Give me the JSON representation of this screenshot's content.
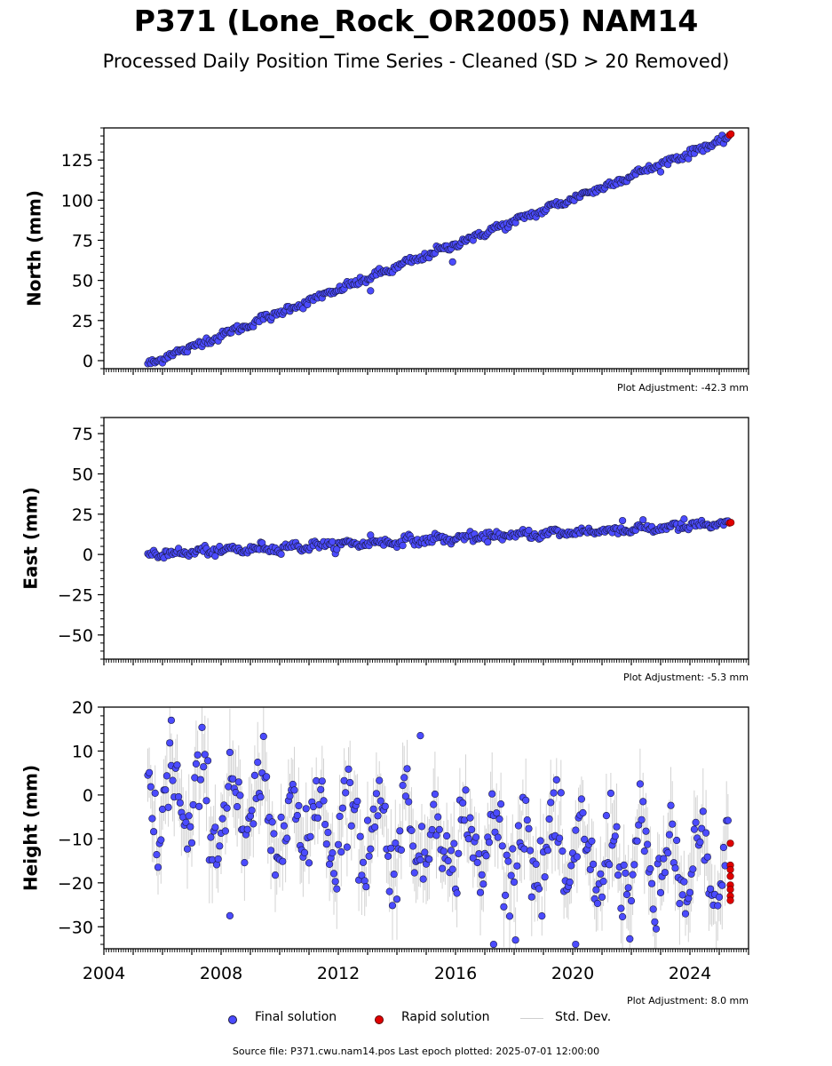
{
  "title": "P371 (Lone_Rock_OR2005) NAM14",
  "subtitle": "Processed Daily Position Time Series - Cleaned (SD > 20 Removed)",
  "legend": {
    "final": "Final solution",
    "rapid": "Rapid solution",
    "std": "Std. Dev."
  },
  "source_text": "Source file: P371.cwu.nam14.pos  Last epoch plotted: 2025-07-01 12:00:00",
  "colors": {
    "final": "#4b4bff",
    "rapid": "#e00000",
    "std": "#808080",
    "edge": "#1a1a40"
  },
  "chart_data": [
    {
      "type": "scatter",
      "ylabel": "North (mm)",
      "adjustment": "Plot Adjustment: -42.3 mm",
      "xlim": [
        2004,
        2026
      ],
      "ylim": [
        -5,
        145
      ],
      "yticks": [
        0,
        25,
        50,
        75,
        100,
        125
      ],
      "ytick_labels": [
        "0",
        "25",
        "50",
        "75",
        "100",
        "125"
      ],
      "x_start": 2005.5,
      "x_end": 2025.3,
      "trend": {
        "y0": -2,
        "rate_per_year": 7.1
      },
      "seasonal_amp": 0.8,
      "noise": 1.2,
      "outliers": [
        {
          "x": 2013.1,
          "y": 43.5
        },
        {
          "x": 2015.9,
          "y": 61.5
        }
      ],
      "rapid": [
        {
          "x": 2025.35,
          "y": 140.5
        },
        {
          "x": 2025.4,
          "y": 141.2
        }
      ],
      "show_std": false
    },
    {
      "type": "scatter",
      "ylabel": "East (mm)",
      "adjustment": "Plot Adjustment: -5.3 mm",
      "xlim": [
        2004,
        2026
      ],
      "ylim": [
        -65,
        85
      ],
      "yticks": [
        -50,
        -25,
        0,
        25,
        50,
        75
      ],
      "ytick_labels": [
        "−50",
        "−25",
        "0",
        "25",
        "50",
        "75"
      ],
      "x_start": 2005.5,
      "x_end": 2025.3,
      "trend": {
        "y0": 0,
        "rate_per_year": 0.95
      },
      "seasonal_amp": 1.2,
      "noise": 1.3,
      "outliers": [
        {
          "x": 2013.1,
          "y": 12
        },
        {
          "x": 2021.7,
          "y": 21
        },
        {
          "x": 2023.8,
          "y": 22
        }
      ],
      "rapid": [
        {
          "x": 2025.35,
          "y": 19.5
        },
        {
          "x": 2025.4,
          "y": 19.8
        }
      ],
      "show_std": false
    },
    {
      "type": "scatter",
      "ylabel": "Height (mm)",
      "adjustment": "Plot Adjustment: 8.0 mm",
      "xlim": [
        2004,
        2026
      ],
      "ylim": [
        -35,
        20
      ],
      "yticks": [
        -30,
        -20,
        -10,
        0,
        10,
        20
      ],
      "ytick_labels": [
        "−30",
        "−20",
        "−10",
        "0",
        "10",
        "20"
      ],
      "xticks": [
        2004,
        2008,
        2012,
        2016,
        2020,
        2024
      ],
      "xtick_labels": [
        "2004",
        "2008",
        "2012",
        "2016",
        "2020",
        "2024"
      ],
      "x_start": 2005.5,
      "x_end": 2025.3,
      "trend": {
        "y0": -1,
        "rate_per_year": -0.9
      },
      "seasonal_amp": 8.5,
      "noise": 4.5,
      "outliers": [
        {
          "x": 2006.3,
          "y": 17
        },
        {
          "x": 2014.8,
          "y": 13.5
        },
        {
          "x": 2017.3,
          "y": -34
        },
        {
          "x": 2020.1,
          "y": -34
        },
        {
          "x": 2008.3,
          "y": -27.5
        }
      ],
      "rapid": [
        {
          "x": 2025.38,
          "y": -11
        },
        {
          "x": 2025.38,
          "y": -16
        },
        {
          "x": 2025.38,
          "y": -17
        },
        {
          "x": 2025.38,
          "y": -18.5
        },
        {
          "x": 2025.38,
          "y": -20.5
        },
        {
          "x": 2025.38,
          "y": -21.5
        },
        {
          "x": 2025.38,
          "y": -23
        },
        {
          "x": 2025.38,
          "y": -24
        }
      ],
      "show_std": true
    }
  ]
}
